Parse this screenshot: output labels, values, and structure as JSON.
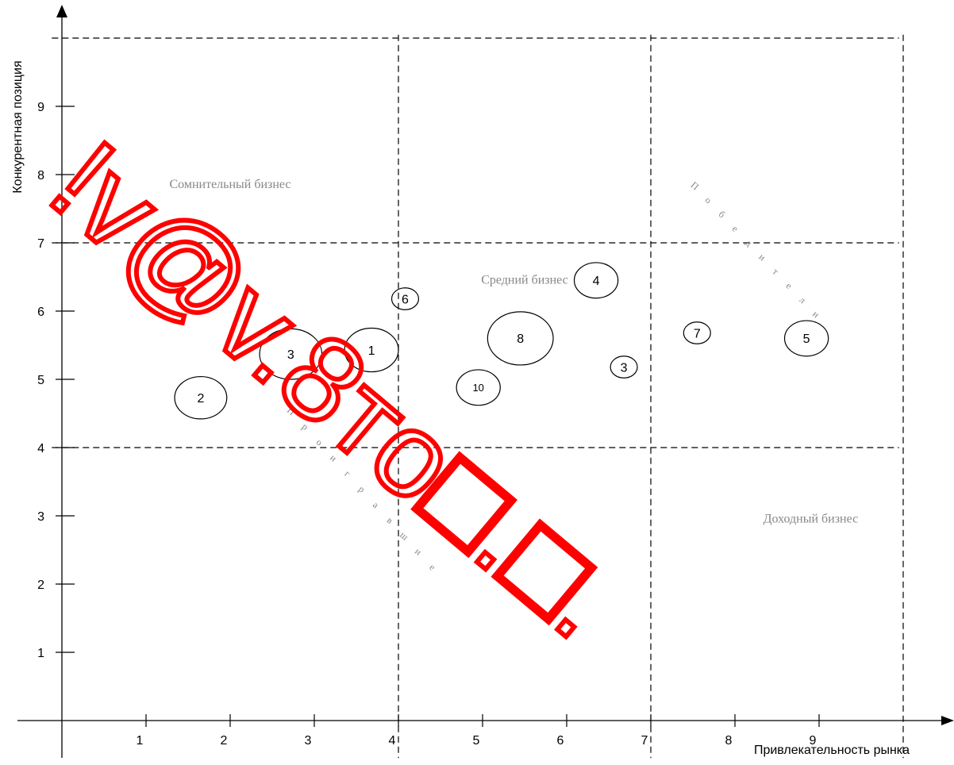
{
  "chart_data": {
    "type": "scatter",
    "ylabel": "Конкурентная позиция",
    "xlabel": "Привлекательность рынка",
    "x_ticks": [
      "1",
      "2",
      "3",
      "4",
      "5",
      "6",
      "7",
      "8",
      "9"
    ],
    "y_ticks": [
      "1",
      "2",
      "3",
      "4",
      "5",
      "6",
      "7",
      "8",
      "9"
    ],
    "xlim": [
      0,
      10
    ],
    "ylim": [
      0,
      10.5
    ],
    "grid_lines": {
      "x": [
        4,
        7,
        10
      ],
      "y": [
        4,
        7,
        10
      ]
    },
    "region_labels": [
      {
        "text": "Сомнительный бизнес",
        "x": 2.0,
        "y": 7.8
      },
      {
        "text": "Средний бизнес",
        "x": 5.5,
        "y": 6.4
      },
      {
        "text": "Доходный бизнес",
        "x": 8.9,
        "y": 2.9
      }
    ],
    "diagonal_labels": [
      {
        "text": "Победители",
        "x": 7.5,
        "y": 7.8,
        "dx": 0.16,
        "dy": -0.19
      },
      {
        "text": "Проигравшие",
        "x": 2.7,
        "y": 4.5,
        "dx": 0.168,
        "dy": -0.208
      }
    ],
    "points": [
      {
        "label": "1",
        "x": 3.68,
        "y": 5.43,
        "size": 0.32
      },
      {
        "label": "2",
        "x": 1.65,
        "y": 4.73,
        "size": 0.31
      },
      {
        "label": "3",
        "x": 2.72,
        "y": 5.37,
        "size": 0.37
      },
      {
        "label": "4",
        "x": 6.35,
        "y": 6.45,
        "size": 0.26
      },
      {
        "label": "5",
        "x": 8.85,
        "y": 5.6,
        "size": 0.26
      },
      {
        "label": "6",
        "x": 4.08,
        "y": 6.18,
        "size": 0.16
      },
      {
        "label": "7",
        "x": 7.55,
        "y": 5.68,
        "size": 0.16
      },
      {
        "label": "8",
        "x": 5.45,
        "y": 5.6,
        "size": 0.39
      },
      {
        "label": "3",
        "x": 6.68,
        "y": 5.18,
        "size": 0.16
      },
      {
        "label": "10",
        "x": 4.95,
        "y": 4.88,
        "size": 0.26
      }
    ]
  },
  "overlay": {
    "text": "!v@v.8то□.□.",
    "color": "#ff0000"
  }
}
